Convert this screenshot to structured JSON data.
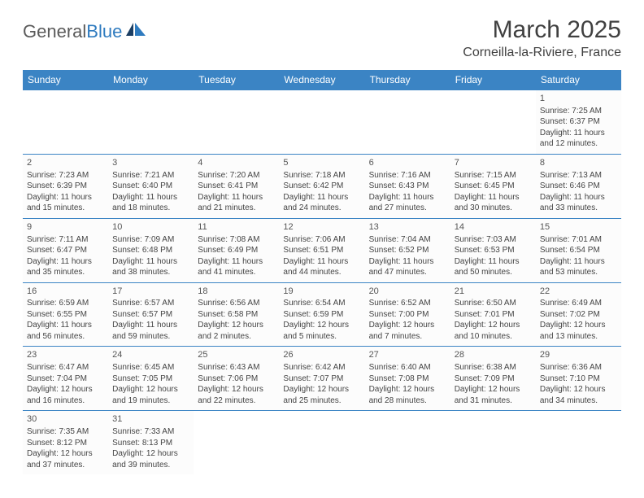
{
  "logo": {
    "part1": "General",
    "part2": "Blue"
  },
  "title": "March 2025",
  "location": "Corneilla-la-Riviere, France",
  "colors": {
    "header_bg": "#3b84c4",
    "header_text": "#ffffff",
    "cell_border": "#3b84c4",
    "text": "#444444",
    "logo_gray": "#5a5a5a",
    "logo_blue": "#2f7bbf"
  },
  "day_headers": [
    "Sunday",
    "Monday",
    "Tuesday",
    "Wednesday",
    "Thursday",
    "Friday",
    "Saturday"
  ],
  "weeks": [
    [
      null,
      null,
      null,
      null,
      null,
      null,
      {
        "n": "1",
        "sr": "Sunrise: 7:25 AM",
        "ss": "Sunset: 6:37 PM",
        "d1": "Daylight: 11 hours",
        "d2": "and 12 minutes."
      }
    ],
    [
      {
        "n": "2",
        "sr": "Sunrise: 7:23 AM",
        "ss": "Sunset: 6:39 PM",
        "d1": "Daylight: 11 hours",
        "d2": "and 15 minutes."
      },
      {
        "n": "3",
        "sr": "Sunrise: 7:21 AM",
        "ss": "Sunset: 6:40 PM",
        "d1": "Daylight: 11 hours",
        "d2": "and 18 minutes."
      },
      {
        "n": "4",
        "sr": "Sunrise: 7:20 AM",
        "ss": "Sunset: 6:41 PM",
        "d1": "Daylight: 11 hours",
        "d2": "and 21 minutes."
      },
      {
        "n": "5",
        "sr": "Sunrise: 7:18 AM",
        "ss": "Sunset: 6:42 PM",
        "d1": "Daylight: 11 hours",
        "d2": "and 24 minutes."
      },
      {
        "n": "6",
        "sr": "Sunrise: 7:16 AM",
        "ss": "Sunset: 6:43 PM",
        "d1": "Daylight: 11 hours",
        "d2": "and 27 minutes."
      },
      {
        "n": "7",
        "sr": "Sunrise: 7:15 AM",
        "ss": "Sunset: 6:45 PM",
        "d1": "Daylight: 11 hours",
        "d2": "and 30 minutes."
      },
      {
        "n": "8",
        "sr": "Sunrise: 7:13 AM",
        "ss": "Sunset: 6:46 PM",
        "d1": "Daylight: 11 hours",
        "d2": "and 33 minutes."
      }
    ],
    [
      {
        "n": "9",
        "sr": "Sunrise: 7:11 AM",
        "ss": "Sunset: 6:47 PM",
        "d1": "Daylight: 11 hours",
        "d2": "and 35 minutes."
      },
      {
        "n": "10",
        "sr": "Sunrise: 7:09 AM",
        "ss": "Sunset: 6:48 PM",
        "d1": "Daylight: 11 hours",
        "d2": "and 38 minutes."
      },
      {
        "n": "11",
        "sr": "Sunrise: 7:08 AM",
        "ss": "Sunset: 6:49 PM",
        "d1": "Daylight: 11 hours",
        "d2": "and 41 minutes."
      },
      {
        "n": "12",
        "sr": "Sunrise: 7:06 AM",
        "ss": "Sunset: 6:51 PM",
        "d1": "Daylight: 11 hours",
        "d2": "and 44 minutes."
      },
      {
        "n": "13",
        "sr": "Sunrise: 7:04 AM",
        "ss": "Sunset: 6:52 PM",
        "d1": "Daylight: 11 hours",
        "d2": "and 47 minutes."
      },
      {
        "n": "14",
        "sr": "Sunrise: 7:03 AM",
        "ss": "Sunset: 6:53 PM",
        "d1": "Daylight: 11 hours",
        "d2": "and 50 minutes."
      },
      {
        "n": "15",
        "sr": "Sunrise: 7:01 AM",
        "ss": "Sunset: 6:54 PM",
        "d1": "Daylight: 11 hours",
        "d2": "and 53 minutes."
      }
    ],
    [
      {
        "n": "16",
        "sr": "Sunrise: 6:59 AM",
        "ss": "Sunset: 6:55 PM",
        "d1": "Daylight: 11 hours",
        "d2": "and 56 minutes."
      },
      {
        "n": "17",
        "sr": "Sunrise: 6:57 AM",
        "ss": "Sunset: 6:57 PM",
        "d1": "Daylight: 11 hours",
        "d2": "and 59 minutes."
      },
      {
        "n": "18",
        "sr": "Sunrise: 6:56 AM",
        "ss": "Sunset: 6:58 PM",
        "d1": "Daylight: 12 hours",
        "d2": "and 2 minutes."
      },
      {
        "n": "19",
        "sr": "Sunrise: 6:54 AM",
        "ss": "Sunset: 6:59 PM",
        "d1": "Daylight: 12 hours",
        "d2": "and 5 minutes."
      },
      {
        "n": "20",
        "sr": "Sunrise: 6:52 AM",
        "ss": "Sunset: 7:00 PM",
        "d1": "Daylight: 12 hours",
        "d2": "and 7 minutes."
      },
      {
        "n": "21",
        "sr": "Sunrise: 6:50 AM",
        "ss": "Sunset: 7:01 PM",
        "d1": "Daylight: 12 hours",
        "d2": "and 10 minutes."
      },
      {
        "n": "22",
        "sr": "Sunrise: 6:49 AM",
        "ss": "Sunset: 7:02 PM",
        "d1": "Daylight: 12 hours",
        "d2": "and 13 minutes."
      }
    ],
    [
      {
        "n": "23",
        "sr": "Sunrise: 6:47 AM",
        "ss": "Sunset: 7:04 PM",
        "d1": "Daylight: 12 hours",
        "d2": "and 16 minutes."
      },
      {
        "n": "24",
        "sr": "Sunrise: 6:45 AM",
        "ss": "Sunset: 7:05 PM",
        "d1": "Daylight: 12 hours",
        "d2": "and 19 minutes."
      },
      {
        "n": "25",
        "sr": "Sunrise: 6:43 AM",
        "ss": "Sunset: 7:06 PM",
        "d1": "Daylight: 12 hours",
        "d2": "and 22 minutes."
      },
      {
        "n": "26",
        "sr": "Sunrise: 6:42 AM",
        "ss": "Sunset: 7:07 PM",
        "d1": "Daylight: 12 hours",
        "d2": "and 25 minutes."
      },
      {
        "n": "27",
        "sr": "Sunrise: 6:40 AM",
        "ss": "Sunset: 7:08 PM",
        "d1": "Daylight: 12 hours",
        "d2": "and 28 minutes."
      },
      {
        "n": "28",
        "sr": "Sunrise: 6:38 AM",
        "ss": "Sunset: 7:09 PM",
        "d1": "Daylight: 12 hours",
        "d2": "and 31 minutes."
      },
      {
        "n": "29",
        "sr": "Sunrise: 6:36 AM",
        "ss": "Sunset: 7:10 PM",
        "d1": "Daylight: 12 hours",
        "d2": "and 34 minutes."
      }
    ],
    [
      {
        "n": "30",
        "sr": "Sunrise: 7:35 AM",
        "ss": "Sunset: 8:12 PM",
        "d1": "Daylight: 12 hours",
        "d2": "and 37 minutes."
      },
      {
        "n": "31",
        "sr": "Sunrise: 7:33 AM",
        "ss": "Sunset: 8:13 PM",
        "d1": "Daylight: 12 hours",
        "d2": "and 39 minutes."
      },
      null,
      null,
      null,
      null,
      null
    ]
  ]
}
